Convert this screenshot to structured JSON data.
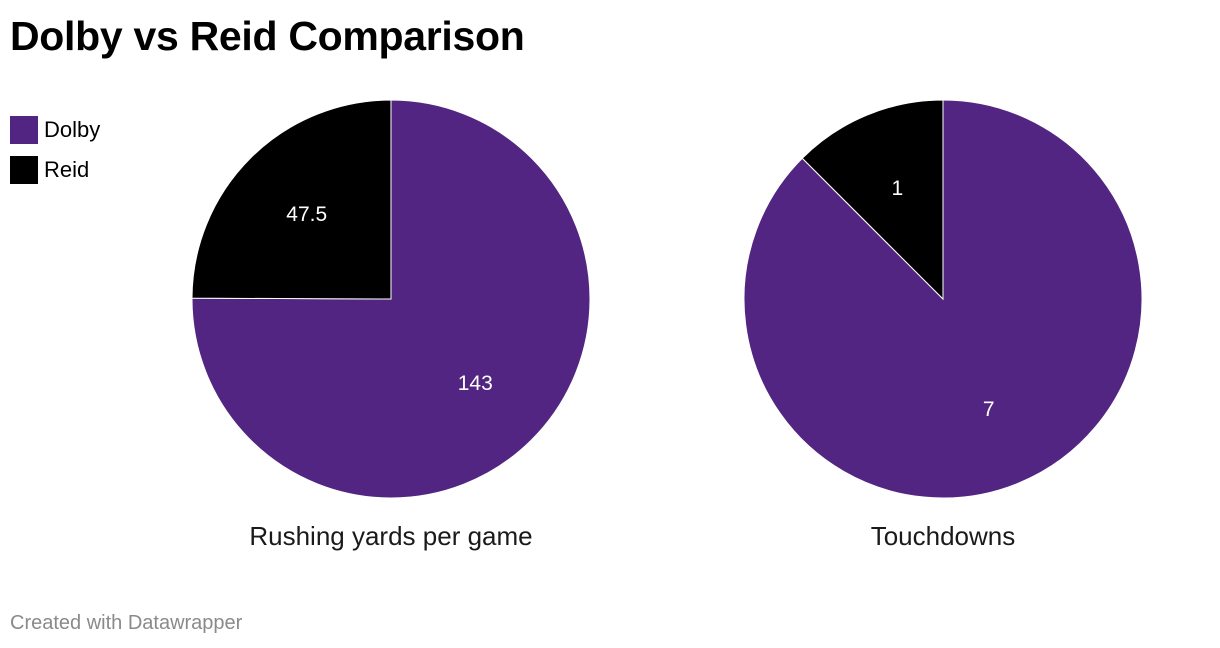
{
  "page": {
    "title": "Dolby vs Reid Comparison",
    "footer": "Created with Datawrapper"
  },
  "legend": [
    {
      "label": "Dolby",
      "color": "#512581"
    },
    {
      "label": "Reid",
      "color": "#000000"
    }
  ],
  "chart_data": [
    {
      "type": "pie",
      "title": "Rushing yards per game",
      "categories": [
        "Dolby",
        "Reid"
      ],
      "values": [
        143,
        47.5
      ],
      "value_labels": [
        "143",
        "47.5"
      ],
      "colors": [
        "#512581",
        "#000000"
      ]
    },
    {
      "type": "pie",
      "title": "Touchdowns",
      "categories": [
        "Dolby",
        "Reid"
      ],
      "values": [
        7,
        1
      ],
      "value_labels": [
        "7",
        "1"
      ],
      "colors": [
        "#512581",
        "#000000"
      ]
    }
  ]
}
